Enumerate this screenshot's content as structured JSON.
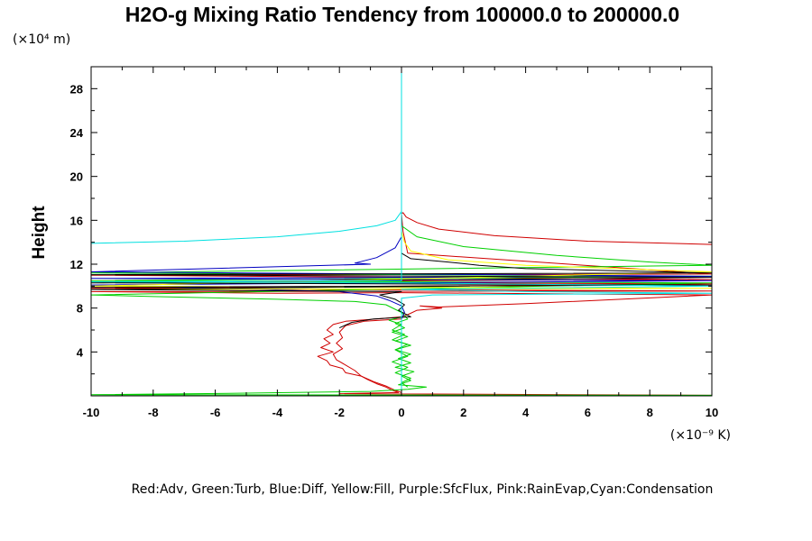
{
  "chart_data": {
    "type": "line",
    "title": "H2O-g Mixing Ratio Tendency from 100000.0 to 200000.0",
    "ylabel": "Height",
    "y_unit": "(×10⁴ m)",
    "x_unit": "(×10⁻⁹ K)",
    "xlim": [
      -10,
      10
    ],
    "ylim": [
      0,
      30
    ],
    "x_ticks": [
      "-10",
      "-8",
      "-6",
      "-4",
      "-2",
      "0",
      "2",
      "4",
      "6",
      "8",
      "10"
    ],
    "y_ticks": [
      "4",
      "8",
      "12",
      "16",
      "20",
      "24",
      "28"
    ],
    "grid": false,
    "legend_text": "Red:Adv, Green:Turb, Blue:Diff, Yellow:Fill, Purple:SfcFlux, Pink:RainEvap,Cyan:Condensation",
    "series": [
      {
        "color": "#d00000",
        "points": [
          [
            10,
            13.8
          ],
          [
            6,
            14.1
          ],
          [
            3,
            14.6
          ],
          [
            1.2,
            15.2
          ],
          [
            0.5,
            15.8
          ],
          [
            0.15,
            16.3
          ],
          [
            0.05,
            16.7
          ],
          [
            0,
            16.6
          ],
          [
            0.05,
            15
          ],
          [
            0.2,
            13
          ],
          [
            10,
            11.1
          ],
          [
            -10,
            11.0
          ],
          [
            10,
            10.6
          ],
          [
            -10,
            10.4
          ],
          [
            10,
            10.2
          ],
          [
            -10,
            9.8
          ],
          [
            10,
            9.55
          ],
          [
            -10,
            9.5
          ],
          [
            -4,
            9.35
          ],
          [
            0,
            9.4
          ],
          [
            10,
            9.2
          ],
          [
            4,
            8.4
          ],
          [
            1.2,
            8.1
          ],
          [
            0.6,
            8.2
          ],
          [
            1.3,
            8.0
          ],
          [
            0.5,
            7.8
          ],
          [
            0.2,
            7.4
          ],
          [
            0,
            7.2
          ],
          [
            -0.8,
            7.0
          ],
          [
            -1.8,
            6.8
          ],
          [
            -2.2,
            6.5
          ],
          [
            -2.4,
            6.0
          ],
          [
            -2.2,
            5.6
          ],
          [
            -2.5,
            5.2
          ],
          [
            -2.3,
            4.8
          ],
          [
            -2.6,
            4.4
          ],
          [
            -2.2,
            4.0
          ],
          [
            -2.7,
            3.6
          ],
          [
            -2.4,
            3.2
          ],
          [
            -2.3,
            2.8
          ],
          [
            -1.9,
            2.5
          ],
          [
            -1.8,
            2.1
          ],
          [
            -1.3,
            1.8
          ],
          [
            -1.1,
            1.5
          ],
          [
            -0.8,
            1.1
          ],
          [
            -0.5,
            0.8
          ],
          [
            -0.3,
            0.5
          ],
          [
            -0.1,
            0.3
          ],
          [
            -2,
            0.2
          ],
          [
            10,
            0.05
          ]
        ]
      },
      {
        "color": "#d00000",
        "points": [
          [
            0,
            7.0
          ],
          [
            -1.2,
            6.8
          ],
          [
            -1.8,
            6.4
          ],
          [
            -2.0,
            5.8
          ],
          [
            -1.9,
            5.3
          ],
          [
            -2.1,
            4.8
          ],
          [
            -1.9,
            4.3
          ],
          [
            -2.2,
            3.8
          ],
          [
            -2.1,
            3.3
          ],
          [
            -1.8,
            2.8
          ],
          [
            -1.5,
            2.3
          ],
          [
            -1.3,
            1.8
          ],
          [
            -0.9,
            1.3
          ],
          [
            -0.5,
            0.9
          ],
          [
            -0.2,
            0.5
          ],
          [
            0,
            0.3
          ]
        ]
      },
      {
        "color": "#00d000",
        "points": [
          [
            0,
            15.5
          ],
          [
            0.5,
            14.5
          ],
          [
            2.0,
            13.6
          ],
          [
            5,
            12.8
          ],
          [
            8,
            12.2
          ],
          [
            10,
            11.9
          ],
          [
            -10,
            11.2
          ],
          [
            10,
            10.9
          ],
          [
            -10,
            10.5
          ],
          [
            10,
            10.3
          ],
          [
            -10,
            9.2
          ],
          [
            -8,
            9.05
          ],
          [
            -4,
            8.8
          ],
          [
            -1.5,
            8.6
          ],
          [
            -0.5,
            8.3
          ],
          [
            0,
            7.6
          ],
          [
            0.2,
            7.0
          ],
          [
            -0.2,
            6.6
          ],
          [
            0.1,
            6.2
          ],
          [
            -0.3,
            5.8
          ],
          [
            0.2,
            5.4
          ],
          [
            -0.2,
            5.0
          ],
          [
            0.3,
            4.6
          ],
          [
            -0.2,
            4.2
          ],
          [
            0.3,
            3.8
          ],
          [
            -0.1,
            3.4
          ],
          [
            0.3,
            3.0
          ],
          [
            -0.2,
            2.6
          ],
          [
            0.4,
            2.2
          ],
          [
            0,
            1.8
          ],
          [
            0.3,
            1.4
          ],
          [
            -0.1,
            1.0
          ],
          [
            0.8,
            0.8
          ],
          [
            0.2,
            0.6
          ],
          [
            -1,
            0.4
          ],
          [
            -5,
            0.25
          ],
          [
            -10,
            0.1
          ],
          [
            10,
            0.05
          ]
        ]
      },
      {
        "color": "#00d000",
        "points": [
          [
            0,
            7.2
          ],
          [
            -0.4,
            6.9
          ],
          [
            0,
            6.5
          ],
          [
            -0.3,
            6.0
          ],
          [
            0.1,
            5.6
          ],
          [
            -0.3,
            5.1
          ],
          [
            0.2,
            4.7
          ],
          [
            -0.2,
            4.2
          ],
          [
            0.2,
            3.6
          ],
          [
            -0.3,
            3.1
          ],
          [
            0.2,
            2.6
          ],
          [
            -0.2,
            2.1
          ],
          [
            0.3,
            1.6
          ],
          [
            0,
            1.2
          ],
          [
            0.2,
            0.8
          ]
        ]
      },
      {
        "color": "#0000c0",
        "points": [
          [
            0,
            14.5
          ],
          [
            -0.2,
            13.5
          ],
          [
            -0.8,
            12.6
          ],
          [
            -1.5,
            12.1
          ],
          [
            -1.0,
            12.0
          ],
          [
            -10,
            11.3
          ],
          [
            10,
            10.9
          ],
          [
            -10,
            10.7
          ],
          [
            10,
            10.5
          ],
          [
            -10,
            10.1
          ],
          [
            -2,
            9.5
          ],
          [
            -0.8,
            9.1
          ],
          [
            -0.4,
            8.7
          ],
          [
            0,
            8.2
          ],
          [
            0.1,
            7.6
          ],
          [
            0,
            7.0
          ],
          [
            0,
            0.3
          ]
        ]
      },
      {
        "color": "#ffff00",
        "points": [
          [
            0,
            15.0
          ],
          [
            0.1,
            14.0
          ],
          [
            0.3,
            13.2
          ],
          [
            1.5,
            12.4
          ],
          [
            4,
            11.9
          ],
          [
            8,
            11.5
          ],
          [
            10,
            11.3
          ],
          [
            -10,
            10.0
          ],
          [
            10,
            9.8
          ],
          [
            -10,
            9.7
          ]
        ]
      },
      {
        "color": "#000000",
        "points": [
          [
            0,
            13.8
          ],
          [
            0,
            13.0
          ],
          [
            0.3,
            12.5
          ],
          [
            1.5,
            12.2
          ],
          [
            2.5,
            11.9
          ],
          [
            4,
            11.6
          ],
          [
            10,
            11.2
          ],
          [
            -10,
            11.05
          ],
          [
            10,
            10.8
          ],
          [
            -10,
            10.3
          ],
          [
            10,
            10.1
          ],
          [
            -10,
            9.9
          ],
          [
            2.2,
            10.0
          ],
          [
            -10,
            9.7
          ],
          [
            0,
            9.5
          ],
          [
            -0.7,
            9.2
          ],
          [
            -0.2,
            8.8
          ],
          [
            0.1,
            8.3
          ],
          [
            -0.1,
            7.8
          ],
          [
            0.3,
            7.2
          ],
          [
            -0.9,
            7.0
          ],
          [
            -1.6,
            6.7
          ],
          [
            -2,
            6.2
          ]
        ]
      },
      {
        "color": "#00e0e0",
        "points": [
          [
            -10,
            13.9
          ],
          [
            -7,
            14.1
          ],
          [
            -4,
            14.5
          ],
          [
            -2,
            15.0
          ],
          [
            -0.8,
            15.5
          ],
          [
            -0.2,
            16.0
          ],
          [
            0,
            16.8
          ],
          [
            0,
            30
          ],
          [
            0,
            16.8
          ],
          [
            0,
            10.5
          ],
          [
            -10,
            10.4
          ],
          [
            0,
            10.3
          ],
          [
            10,
            10.0
          ],
          [
            0,
            9.7
          ],
          [
            4,
            9.5
          ],
          [
            10,
            9.35
          ],
          [
            1,
            9.2
          ],
          [
            0,
            8.9
          ],
          [
            0,
            0.3
          ]
        ]
      }
    ]
  }
}
